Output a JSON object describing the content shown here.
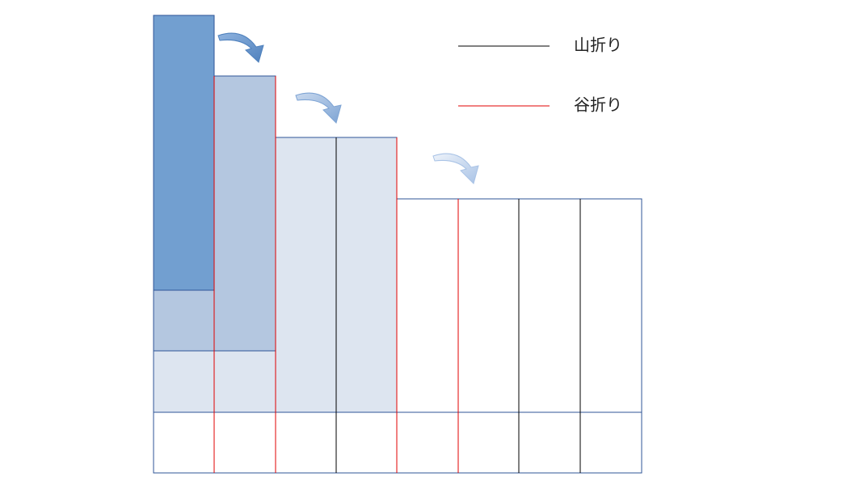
{
  "legend": [
    {
      "label": "山折り"
    },
    {
      "label": "谷折り"
    }
  ]
}
